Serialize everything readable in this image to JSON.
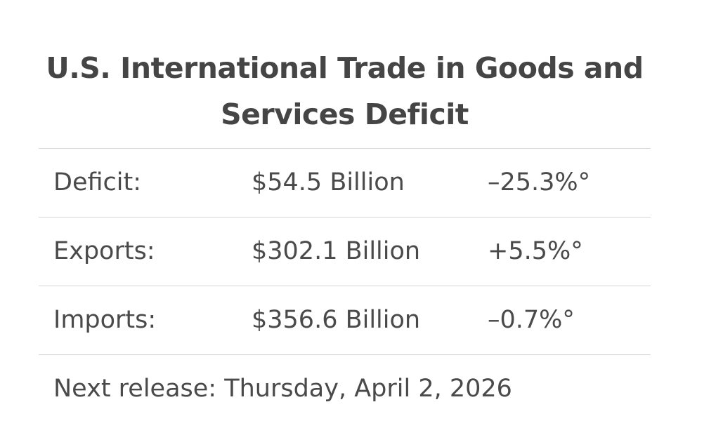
{
  "widget": {
    "title": "U.S. International Trade in Goods and Services Deficit",
    "rows": [
      {
        "label": "Deficit:",
        "value": "$54.5 Billion",
        "change": "–25.3%°"
      },
      {
        "label": "Exports:",
        "value": "$302.1 Billion",
        "change": "+5.5%°"
      },
      {
        "label": "Imports:",
        "value": "$356.6 Billion",
        "change": "–0.7%°"
      }
    ],
    "next_release": "Next release: Thursday, April 2, 2026"
  },
  "colors": {
    "text": "#4a4a4a",
    "divider": "#d6d6d6",
    "background": "#ffffff"
  }
}
